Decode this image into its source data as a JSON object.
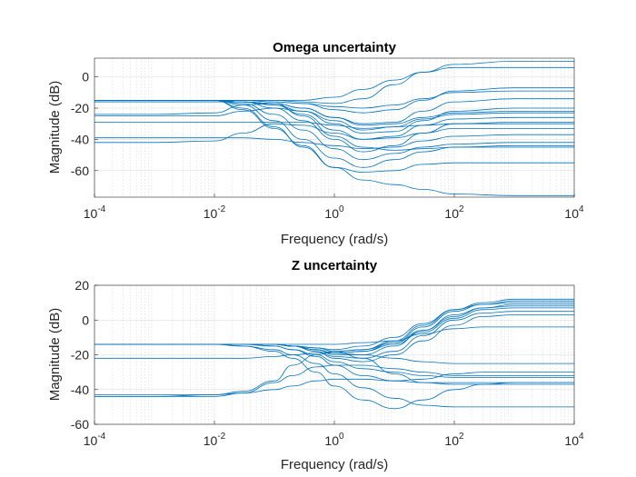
{
  "chart_data": [
    {
      "type": "line",
      "title": "Omega uncertainty",
      "xlabel": "Frequency  (rad/s)",
      "ylabel": "Magnitude (dB)",
      "x_scale": "log",
      "xlim": [
        0.0001,
        10000
      ],
      "ylim": [
        -77,
        12
      ],
      "x_ticks": [
        0.0001,
        0.01,
        1,
        100,
        10000
      ],
      "x_tick_labels": [
        {
          "base": "10",
          "exp": "-4"
        },
        {
          "base": "10",
          "exp": "-2"
        },
        {
          "base": "10",
          "exp": "0"
        },
        {
          "base": "10",
          "exp": "2"
        },
        {
          "base": "10",
          "exp": "4"
        }
      ],
      "y_ticks": [
        0,
        -20,
        -40,
        -60
      ],
      "y_tick_labels": [
        "0",
        "-20",
        "-40",
        "-60"
      ],
      "grid": true,
      "color": "#0072bd",
      "x": [
        0.0001,
        0.001,
        0.01,
        0.03,
        0.1,
        0.3,
        1,
        3,
        10,
        30,
        100,
        1000,
        10000
      ],
      "series": [
        {
          "values": [
            -15,
            -15,
            -15,
            -15,
            -16,
            -17,
            -19,
            -20,
            -18,
            -14,
            -10,
            -9,
            -9
          ]
        },
        {
          "values": [
            -15,
            -15,
            -15,
            -15,
            -15,
            -16,
            -17,
            -14,
            -5,
            3,
            8,
            10,
            10
          ]
        },
        {
          "values": [
            -15,
            -15,
            -15,
            -15,
            -15,
            -15,
            -13,
            -8,
            -2,
            3,
            6,
            6,
            6
          ]
        },
        {
          "values": [
            -15,
            -15,
            -15,
            -15,
            -16,
            -17,
            -21,
            -23,
            -21,
            -15,
            -9,
            -7,
            -7
          ]
        },
        {
          "values": [
            -16,
            -16,
            -16,
            -16,
            -17,
            -20,
            -26,
            -30,
            -29,
            -22,
            -16,
            -14,
            -14
          ]
        },
        {
          "values": [
            -16,
            -16,
            -16,
            -16,
            -18,
            -22,
            -30,
            -36,
            -35,
            -28,
            -22,
            -20,
            -20
          ]
        },
        {
          "values": [
            -16,
            -16,
            -16,
            -16,
            -18,
            -24,
            -34,
            -40,
            -38,
            -31,
            -27,
            -26,
            -26
          ]
        },
        {
          "values": [
            -25,
            -25,
            -25,
            -22,
            -20,
            -22,
            -28,
            -34,
            -32,
            -27,
            -24,
            -23,
            -23
          ]
        },
        {
          "values": [
            -24,
            -24,
            -23,
            -18,
            -17,
            -20,
            -26,
            -31,
            -30,
            -26,
            -23,
            -22,
            -22
          ]
        },
        {
          "values": [
            -29,
            -29,
            -29,
            -29,
            -29,
            -29,
            -31,
            -33,
            -32,
            -31,
            -30,
            -30,
            -30
          ]
        },
        {
          "values": [
            -39,
            -39,
            -39,
            -39,
            -40,
            -42,
            -44,
            -46,
            -45,
            -41,
            -38,
            -37,
            -37
          ]
        },
        {
          "values": [
            -42,
            -42,
            -41,
            -36,
            -30,
            -31,
            -36,
            -40,
            -39,
            -36,
            -33,
            -33,
            -33
          ]
        },
        {
          "values": [
            -15,
            -15,
            -15,
            -16,
            -20,
            -28,
            -40,
            -48,
            -44,
            -36,
            -30,
            -29,
            -29
          ]
        },
        {
          "values": [
            -15,
            -15,
            -15,
            -17,
            -24,
            -34,
            -46,
            -53,
            -49,
            -45,
            -43,
            -42,
            -42
          ]
        },
        {
          "values": [
            -15,
            -15,
            -15,
            -18,
            -28,
            -40,
            -52,
            -58,
            -53,
            -48,
            -45,
            -44,
            -44
          ]
        },
        {
          "values": [
            -15,
            -15,
            -15,
            -20,
            -32,
            -45,
            -58,
            -61,
            -60,
            -56,
            -55,
            -55,
            -55
          ]
        },
        {
          "values": [
            -15,
            -15,
            -15,
            -21,
            -33,
            -44,
            -58,
            -66,
            -69,
            -72,
            -75,
            -76,
            -76
          ]
        },
        {
          "values": [
            -15,
            -15,
            -15,
            -16,
            -17,
            -25,
            -38,
            -45,
            -47,
            -46,
            -45,
            -45,
            -45
          ]
        }
      ]
    },
    {
      "type": "line",
      "title": "Z uncertainty",
      "xlabel": "Frequency  (rad/s)",
      "ylabel": "Magnitude (dB)",
      "x_scale": "log",
      "xlim": [
        0.0001,
        10000
      ],
      "ylim": [
        -60,
        20
      ],
      "x_ticks": [
        0.0001,
        0.01,
        1,
        100,
        10000
      ],
      "x_tick_labels": [
        {
          "base": "10",
          "exp": "-4"
        },
        {
          "base": "10",
          "exp": "-2"
        },
        {
          "base": "10",
          "exp": "0"
        },
        {
          "base": "10",
          "exp": "2"
        },
        {
          "base": "10",
          "exp": "4"
        }
      ],
      "y_ticks": [
        20,
        0,
        -20,
        -40,
        -60
      ],
      "y_tick_labels": [
        "20",
        "0",
        "-20",
        "-40",
        "-60"
      ],
      "grid": true,
      "color": "#0072bd",
      "x": [
        0.0001,
        0.001,
        0.01,
        0.03,
        0.1,
        0.2,
        0.5,
        1,
        3,
        10,
        30,
        100,
        300,
        1000,
        10000
      ],
      "series": [
        {
          "values": [
            -14,
            -14,
            -14,
            -14,
            -14,
            -15,
            -16,
            -18,
            -17,
            -12,
            -3,
            6,
            10,
            12,
            12
          ]
        },
        {
          "values": [
            -14,
            -14,
            -14,
            -14,
            -14,
            -15,
            -17,
            -19,
            -18,
            -13,
            -4,
            5,
            9,
            11,
            11
          ]
        },
        {
          "values": [
            -14,
            -14,
            -14,
            -14,
            -14,
            -15,
            -16,
            -17,
            -15,
            -10,
            -2,
            6,
            9,
            10,
            10
          ]
        },
        {
          "values": [
            -14,
            -14,
            -14,
            -14,
            -14,
            -15,
            -17,
            -20,
            -20,
            -15,
            -6,
            3,
            7,
            8,
            8
          ]
        },
        {
          "values": [
            -14,
            -14,
            -14,
            -14,
            -14,
            -15,
            -18,
            -21,
            -22,
            -18,
            -9,
            0,
            4,
            5,
            5
          ]
        },
        {
          "values": [
            -14,
            -14,
            -14,
            -14,
            -14,
            -15,
            -18,
            -22,
            -24,
            -20,
            -12,
            -3,
            2,
            3,
            3
          ]
        },
        {
          "values": [
            -14,
            -14,
            -14,
            -14,
            -14,
            -14,
            -14,
            -14,
            -13,
            -12,
            -8,
            -5,
            -4,
            -4,
            -4
          ]
        },
        {
          "values": [
            -14,
            -14,
            -14,
            -14,
            -14,
            -15,
            -17,
            -19,
            -18,
            -14,
            -7,
            1,
            6,
            7,
            7
          ]
        },
        {
          "values": [
            -14,
            -14,
            -14,
            -14,
            -14,
            -15,
            -16,
            -18,
            -17,
            -13,
            -6,
            2,
            7,
            9,
            9
          ]
        },
        {
          "values": [
            -22,
            -22,
            -22,
            -22,
            -21,
            -20,
            -19,
            -19,
            -20,
            -22,
            -24,
            -25,
            -25,
            -25,
            -25
          ]
        },
        {
          "values": [
            -14,
            -14,
            -14,
            -14,
            -15,
            -17,
            -20,
            -24,
            -28,
            -30,
            -32,
            -33,
            -33,
            -33,
            -33
          ]
        },
        {
          "values": [
            -14,
            -14,
            -14,
            -14,
            -15,
            -17,
            -21,
            -26,
            -32,
            -35,
            -34,
            -31,
            -30,
            -30,
            -30
          ]
        },
        {
          "values": [
            -14,
            -14,
            -14,
            -15,
            -17,
            -20,
            -25,
            -31,
            -39,
            -45,
            -49,
            -50,
            -50,
            -50,
            -50
          ]
        },
        {
          "values": [
            -43,
            -43,
            -43,
            -42,
            -40,
            -38,
            -35,
            -34,
            -34,
            -35,
            -36,
            -36,
            -36,
            -36,
            -36
          ]
        },
        {
          "values": [
            -44,
            -44,
            -44,
            -42,
            -36,
            -32,
            -27,
            -26,
            -26,
            -28,
            -30,
            -32,
            -32,
            -32,
            -32
          ]
        },
        {
          "values": [
            -14,
            -14,
            -14,
            -15,
            -18,
            -22,
            -30,
            -38,
            -46,
            -51,
            -46,
            -40,
            -37,
            -36,
            -36
          ]
        },
        {
          "values": [
            -44,
            -44,
            -43,
            -41,
            -35,
            -26,
            -20,
            -18,
            -22,
            -31,
            -36,
            -37,
            -37,
            -37,
            -37
          ]
        }
      ]
    }
  ]
}
